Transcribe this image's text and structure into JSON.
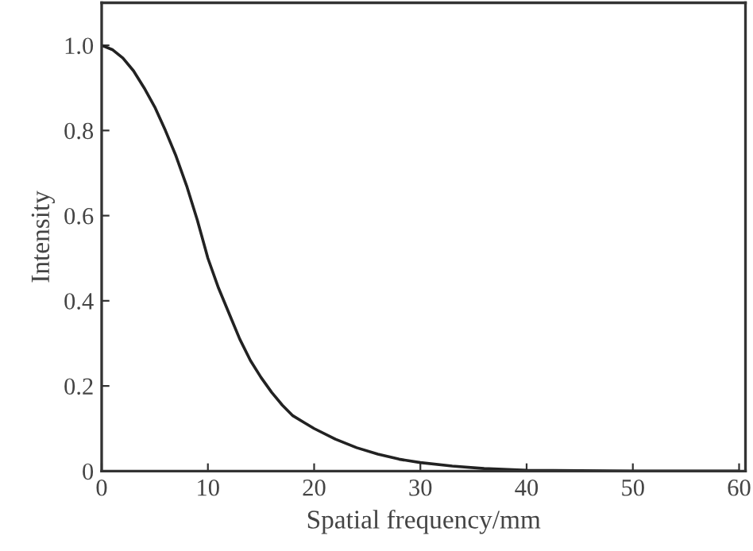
{
  "chart_data": {
    "type": "line",
    "xlabel": "Spatial frequency/mm",
    "ylabel": "Intensity",
    "x": [
      0,
      1,
      2,
      3,
      4,
      5,
      6,
      7,
      8,
      9,
      10,
      11,
      12,
      13,
      14,
      15,
      16,
      17,
      18,
      19,
      20,
      22,
      24,
      26,
      28,
      30,
      33,
      36,
      40,
      45,
      50,
      55,
      60
    ],
    "series": [
      {
        "color": "#222222",
        "values": [
          1.0,
          0.99,
          0.97,
          0.94,
          0.9,
          0.855,
          0.8,
          0.74,
          0.67,
          0.59,
          0.5,
          0.43,
          0.37,
          0.31,
          0.26,
          0.22,
          0.185,
          0.155,
          0.13,
          0.115,
          0.1,
          0.075,
          0.055,
          0.04,
          0.028,
          0.02,
          0.012,
          0.006,
          0.002,
          0.001,
          0,
          0,
          0
        ]
      }
    ],
    "xlim": [
      0,
      60.6
    ],
    "xticks": [
      0,
      10,
      20,
      30,
      40,
      50,
      60
    ],
    "ylim": [
      0,
      1.1
    ],
    "yticks": [
      0,
      0.2,
      0.4,
      0.6,
      0.8,
      {
        "value": 1,
        "label": "1.0"
      }
    ],
    "grid": false,
    "marker": "none",
    "line_style": "solid"
  }
}
